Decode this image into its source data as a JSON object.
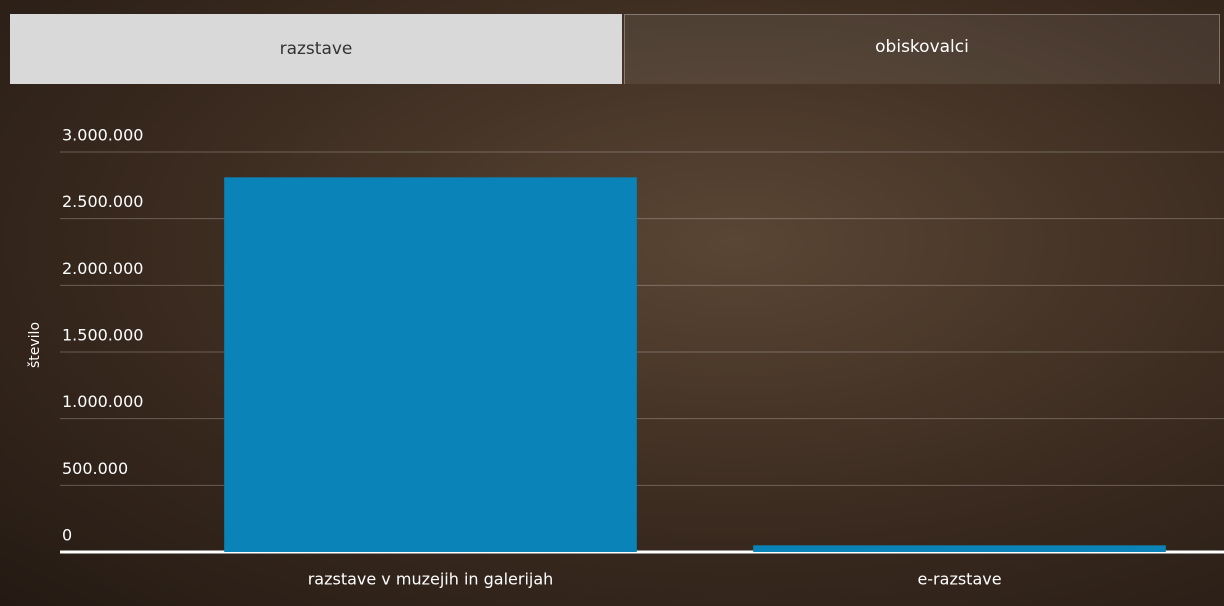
{
  "tabs": [
    "razstave",
    "obiskovalci"
  ],
  "chart_data": {
    "type": "bar",
    "y_label": "število",
    "categories": [
      "razstave v muzejih in galerijah",
      "e-razstave"
    ],
    "values": [
      2810000,
      50000
    ],
    "color": "#0a84b8",
    "ylim": [
      0,
      3000000
    ],
    "yticks": [
      0,
      {
        "value": 500000,
        "label": "500.000"
      },
      {
        "value": 1000000,
        "label": "1.000.000"
      },
      {
        "value": 1500000,
        "label": "1.500.000"
      },
      {
        "value": 2000000,
        "label": "2.000.000"
      },
      {
        "value": 2500000,
        "label": "2.500.000"
      },
      {
        "value": 3000000,
        "label": "3.000.000"
      }
    ],
    "grid": true
  }
}
